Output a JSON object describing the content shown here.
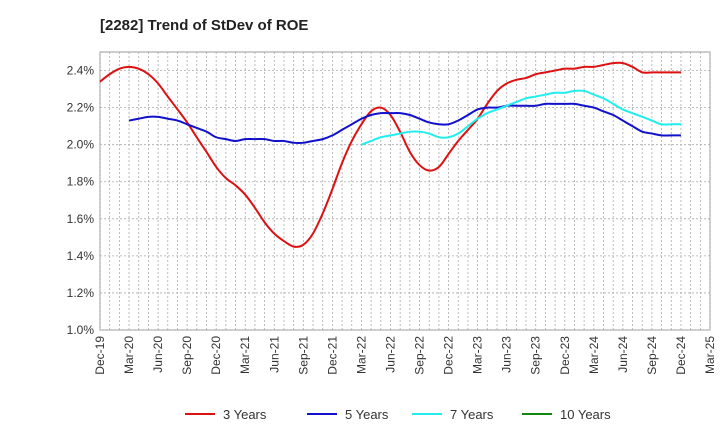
{
  "chart_data": {
    "type": "line",
    "title": "[2282]  Trend of StDev of ROE",
    "xlabel": "",
    "ylabel": "",
    "ylim": [
      0.01,
      0.025
    ],
    "y_ticks": [
      "1.0%",
      "1.2%",
      "1.4%",
      "1.6%",
      "1.8%",
      "2.0%",
      "2.2%",
      "2.4%"
    ],
    "y_tick_values": [
      0.01,
      0.012,
      0.014,
      0.016,
      0.018,
      0.02,
      0.022,
      0.024
    ],
    "x_ticks": [
      "Dec-19",
      "Mar-20",
      "Jun-20",
      "Sep-20",
      "Dec-20",
      "Mar-21",
      "Jun-21",
      "Sep-21",
      "Dec-21",
      "Mar-22",
      "Jun-22",
      "Sep-22",
      "Dec-22",
      "Mar-23",
      "Jun-23",
      "Sep-23",
      "Dec-23",
      "Mar-24",
      "Jun-24",
      "Sep-24",
      "Dec-24",
      "Mar-25"
    ],
    "grid": true,
    "legend_position": "bottom",
    "series": [
      {
        "name": "3 Years",
        "color": "#dd1111",
        "x": [
          0,
          0.33,
          0.67,
          1,
          1.33,
          1.67,
          2,
          2.33,
          2.67,
          3,
          3.33,
          3.67,
          4,
          4.33,
          4.67,
          5,
          5.33,
          5.67,
          6,
          6.33,
          6.67,
          7,
          7.33,
          7.67,
          8,
          8.33,
          8.67,
          9,
          9.33,
          9.67,
          10,
          10.33,
          10.67,
          11,
          11.33,
          11.67,
          12,
          12.33,
          12.67,
          13,
          13.33,
          13.67,
          14,
          14.33,
          14.67,
          15,
          15.33,
          15.67,
          16,
          16.33,
          16.67,
          17,
          17.33,
          17.67,
          18,
          18.33,
          18.67,
          19,
          19.33,
          19.67,
          20
        ],
        "y": [
          0.0234,
          0.0238,
          0.0241,
          0.0242,
          0.0241,
          0.0238,
          0.0233,
          0.0226,
          0.0219,
          0.0212,
          0.0204,
          0.0196,
          0.0188,
          0.0182,
          0.0178,
          0.0173,
          0.0166,
          0.0158,
          0.0152,
          0.0148,
          0.0145,
          0.0146,
          0.0152,
          0.0163,
          0.0176,
          0.019,
          0.0202,
          0.0211,
          0.0218,
          0.022,
          0.0216,
          0.0207,
          0.0196,
          0.0189,
          0.0186,
          0.0188,
          0.0195,
          0.0202,
          0.0208,
          0.0214,
          0.0222,
          0.0229,
          0.0233,
          0.0235,
          0.0236,
          0.0238,
          0.0239,
          0.024,
          0.0241,
          0.0241,
          0.0242,
          0.0242,
          0.0243,
          0.0244,
          0.0244,
          0.0242,
          0.0239,
          0.0239,
          0.0239,
          0.0239,
          0.0239
        ]
      },
      {
        "name": "5 Years",
        "color": "#1111cc",
        "x": [
          1,
          1.33,
          1.67,
          2,
          2.33,
          2.67,
          3,
          3.33,
          3.67,
          4,
          4.33,
          4.67,
          5,
          5.33,
          5.67,
          6,
          6.33,
          6.67,
          7,
          7.33,
          7.67,
          8,
          8.33,
          8.67,
          9,
          9.33,
          9.67,
          10,
          10.33,
          10.67,
          11,
          11.33,
          11.67,
          12,
          12.33,
          12.67,
          13,
          13.33,
          13.67,
          14,
          14.33,
          14.67,
          15,
          15.33,
          15.67,
          16,
          16.33,
          16.67,
          17,
          17.33,
          17.67,
          18,
          18.33,
          18.67,
          19,
          19.33,
          19.67,
          20
        ],
        "y": [
          0.0213,
          0.0214,
          0.0215,
          0.0215,
          0.0214,
          0.0213,
          0.0211,
          0.0209,
          0.0207,
          0.0204,
          0.0203,
          0.0202,
          0.0203,
          0.0203,
          0.0203,
          0.0202,
          0.0202,
          0.0201,
          0.0201,
          0.0202,
          0.0203,
          0.0205,
          0.0208,
          0.0211,
          0.0214,
          0.0216,
          0.0217,
          0.0217,
          0.0217,
          0.0216,
          0.0214,
          0.0212,
          0.0211,
          0.0211,
          0.0213,
          0.0216,
          0.0219,
          0.022,
          0.022,
          0.0221,
          0.0221,
          0.0221,
          0.0221,
          0.0222,
          0.0222,
          0.0222,
          0.0222,
          0.0221,
          0.022,
          0.0218,
          0.0216,
          0.0213,
          0.021,
          0.0207,
          0.0206,
          0.0205,
          0.0205,
          0.0205
        ]
      },
      {
        "name": "7 Years",
        "color": "#22eeee",
        "x": [
          9,
          9.33,
          9.67,
          10,
          10.33,
          10.67,
          11,
          11.33,
          11.67,
          12,
          12.33,
          12.67,
          13,
          13.33,
          13.67,
          14,
          14.33,
          14.67,
          15,
          15.33,
          15.67,
          16,
          16.33,
          16.67,
          17,
          17.33,
          17.67,
          18,
          18.33,
          18.67,
          19,
          19.33,
          19.67,
          20
        ],
        "y": [
          0.02,
          0.0202,
          0.0204,
          0.0205,
          0.0206,
          0.0207,
          0.0207,
          0.0206,
          0.0204,
          0.0204,
          0.0206,
          0.021,
          0.0214,
          0.0217,
          0.0219,
          0.0221,
          0.0223,
          0.0225,
          0.0226,
          0.0227,
          0.0228,
          0.0228,
          0.0229,
          0.0229,
          0.0227,
          0.0225,
          0.0222,
          0.0219,
          0.0217,
          0.0215,
          0.0213,
          0.0211,
          0.0211,
          0.0211
        ]
      },
      {
        "name": "10 Years",
        "color": "#118811",
        "x": [],
        "y": []
      }
    ]
  }
}
